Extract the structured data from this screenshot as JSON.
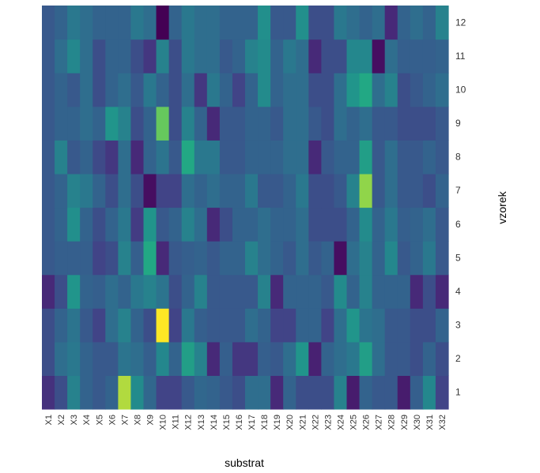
{
  "chart_data": {
    "type": "heatmap",
    "xlabel": "substrat",
    "ylabel": "vzorek",
    "x": [
      "X1",
      "X2",
      "X3",
      "X4",
      "X5",
      "X6",
      "X7",
      "X8",
      "X9",
      "X10",
      "X11",
      "X12",
      "X13",
      "X14",
      "X15",
      "X16",
      "X17",
      "X18",
      "X19",
      "X20",
      "X21",
      "X22",
      "X23",
      "X24",
      "X25",
      "X26",
      "X27",
      "X28",
      "X29",
      "X30",
      "X31",
      "X32"
    ],
    "y": [
      "1",
      "2",
      "3",
      "4",
      "5",
      "6",
      "7",
      "8",
      "9",
      "10",
      "11",
      "12"
    ],
    "color_scale": "viridis",
    "value_range": [
      0,
      1
    ],
    "legend": "none",
    "grid": false,
    "rows": [
      {
        "label": "1",
        "values": [
          0.18,
          0.3,
          0.55,
          0.4,
          0.35,
          0.4,
          0.93,
          0.6,
          0.42,
          0.25,
          0.25,
          0.35,
          0.42,
          0.4,
          0.35,
          0.3,
          0.45,
          0.45,
          0.15,
          0.4,
          0.3,
          0.3,
          0.3,
          0.55,
          0.1,
          0.4,
          0.35,
          0.35,
          0.1,
          0.38,
          0.58,
          0.25
        ]
      },
      {
        "label": "2",
        "values": [
          0.3,
          0.45,
          0.5,
          0.4,
          0.35,
          0.35,
          0.48,
          0.45,
          0.38,
          0.58,
          0.4,
          0.7,
          0.55,
          0.15,
          0.38,
          0.2,
          0.2,
          0.38,
          0.35,
          0.45,
          0.65,
          0.12,
          0.4,
          0.45,
          0.5,
          0.7,
          0.45,
          0.35,
          0.35,
          0.3,
          0.4,
          0.3
        ]
      },
      {
        "label": "3",
        "values": [
          0.3,
          0.4,
          0.48,
          0.35,
          0.25,
          0.45,
          0.55,
          0.4,
          0.3,
          1.0,
          0.25,
          0.5,
          0.38,
          0.35,
          0.35,
          0.35,
          0.45,
          0.4,
          0.25,
          0.25,
          0.4,
          0.4,
          0.25,
          0.45,
          0.65,
          0.48,
          0.45,
          0.35,
          0.35,
          0.3,
          0.3,
          0.4
        ]
      },
      {
        "label": "4",
        "values": [
          0.15,
          0.3,
          0.65,
          0.4,
          0.38,
          0.45,
          0.4,
          0.5,
          0.55,
          0.48,
          0.3,
          0.4,
          0.55,
          0.35,
          0.35,
          0.35,
          0.35,
          0.55,
          0.15,
          0.4,
          0.4,
          0.4,
          0.35,
          0.6,
          0.4,
          0.55,
          0.4,
          0.4,
          0.4,
          0.15,
          0.3,
          0.15
        ]
      },
      {
        "label": "5",
        "values": [
          0.35,
          0.38,
          0.38,
          0.38,
          0.25,
          0.3,
          0.55,
          0.38,
          0.75,
          0.15,
          0.35,
          0.38,
          0.4,
          0.35,
          0.4,
          0.4,
          0.55,
          0.45,
          0.4,
          0.35,
          0.45,
          0.35,
          0.4,
          0.05,
          0.45,
          0.55,
          0.4,
          0.58,
          0.35,
          0.4,
          0.5,
          0.35
        ]
      },
      {
        "label": "6",
        "values": [
          0.35,
          0.4,
          0.62,
          0.4,
          0.3,
          0.4,
          0.5,
          0.22,
          0.65,
          0.35,
          0.4,
          0.55,
          0.45,
          0.15,
          0.3,
          0.4,
          0.4,
          0.45,
          0.4,
          0.4,
          0.45,
          0.3,
          0.3,
          0.3,
          0.4,
          0.6,
          0.4,
          0.5,
          0.38,
          0.4,
          0.45,
          0.35
        ]
      },
      {
        "label": "7",
        "values": [
          0.35,
          0.4,
          0.55,
          0.5,
          0.4,
          0.3,
          0.45,
          0.3,
          0.05,
          0.25,
          0.25,
          0.45,
          0.4,
          0.45,
          0.4,
          0.4,
          0.5,
          0.35,
          0.35,
          0.4,
          0.5,
          0.3,
          0.3,
          0.35,
          0.55,
          0.9,
          0.35,
          0.45,
          0.35,
          0.35,
          0.3,
          0.4
        ]
      },
      {
        "label": "8",
        "values": [
          0.35,
          0.55,
          0.35,
          0.4,
          0.28,
          0.2,
          0.45,
          0.15,
          0.4,
          0.48,
          0.35,
          0.75,
          0.5,
          0.5,
          0.35,
          0.35,
          0.4,
          0.4,
          0.4,
          0.45,
          0.45,
          0.15,
          0.35,
          0.4,
          0.4,
          0.7,
          0.35,
          0.45,
          0.35,
          0.35,
          0.4,
          0.35
        ]
      },
      {
        "label": "9",
        "values": [
          0.35,
          0.4,
          0.4,
          0.45,
          0.4,
          0.65,
          0.55,
          0.3,
          0.4,
          0.85,
          0.3,
          0.55,
          0.4,
          0.15,
          0.35,
          0.35,
          0.4,
          0.4,
          0.35,
          0.45,
          0.45,
          0.35,
          0.3,
          0.45,
          0.4,
          0.45,
          0.35,
          0.35,
          0.3,
          0.3,
          0.3,
          0.35
        ]
      },
      {
        "label": "10",
        "values": [
          0.35,
          0.4,
          0.35,
          0.45,
          0.3,
          0.4,
          0.45,
          0.35,
          0.5,
          0.4,
          0.3,
          0.45,
          0.2,
          0.5,
          0.4,
          0.25,
          0.4,
          0.6,
          0.4,
          0.45,
          0.45,
          0.3,
          0.3,
          0.45,
          0.65,
          0.75,
          0.45,
          0.55,
          0.3,
          0.35,
          0.4,
          0.45
        ]
      },
      {
        "label": "11",
        "values": [
          0.35,
          0.45,
          0.58,
          0.45,
          0.3,
          0.4,
          0.4,
          0.3,
          0.2,
          0.55,
          0.3,
          0.5,
          0.45,
          0.45,
          0.35,
          0.4,
          0.55,
          0.6,
          0.4,
          0.5,
          0.45,
          0.15,
          0.3,
          0.3,
          0.58,
          0.58,
          0.05,
          0.45,
          0.38,
          0.38,
          0.38,
          0.4
        ]
      },
      {
        "label": "12",
        "values": [
          0.35,
          0.4,
          0.5,
          0.45,
          0.4,
          0.4,
          0.4,
          0.5,
          0.45,
          0.0,
          0.4,
          0.5,
          0.45,
          0.45,
          0.4,
          0.4,
          0.4,
          0.62,
          0.35,
          0.35,
          0.62,
          0.3,
          0.3,
          0.5,
          0.45,
          0.4,
          0.45,
          0.15,
          0.4,
          0.45,
          0.4,
          0.55
        ]
      }
    ]
  }
}
